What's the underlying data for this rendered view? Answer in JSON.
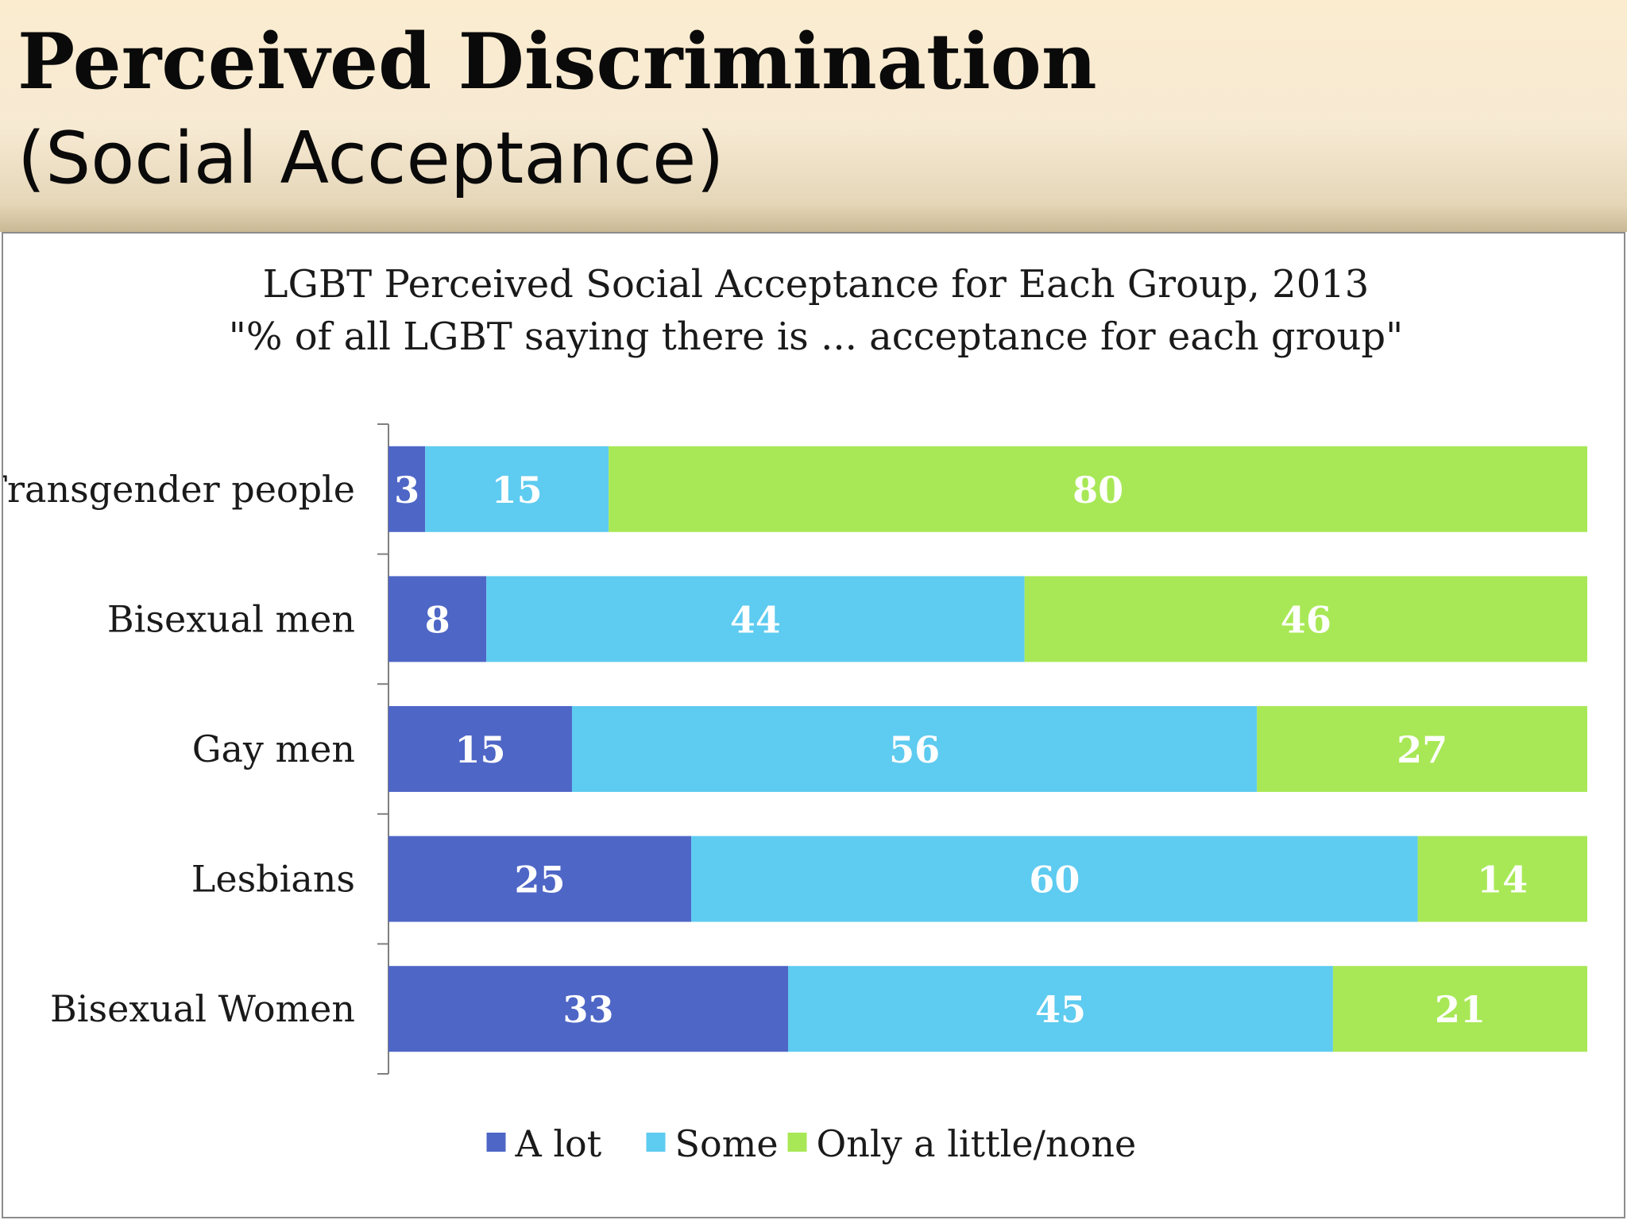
{
  "slide": {
    "title": "Perceived Discrimination",
    "subtitle": "(Social Acceptance)"
  },
  "chart_data": {
    "type": "bar",
    "orientation": "horizontal",
    "stacked": true,
    "title": "LGBT Perceived Social Acceptance for Each Group, 2013",
    "subtitle": "\"% of all LGBT saying there is ... acceptance for each group\"",
    "categories": [
      "Transgender people",
      "Bisexual men",
      "Gay men",
      "Lesbians",
      "Bisexual Women"
    ],
    "series": [
      {
        "name": "A lot",
        "color": "#4e66c6",
        "values": [
          3,
          8,
          15,
          25,
          33
        ]
      },
      {
        "name": "Some",
        "color": "#5ecbf0",
        "values": [
          15,
          44,
          56,
          60,
          45
        ]
      },
      {
        "name": "Only a little/none",
        "color": "#a8e856",
        "values": [
          80,
          46,
          27,
          14,
          21
        ]
      }
    ],
    "legend": "bottom",
    "grid": false
  }
}
